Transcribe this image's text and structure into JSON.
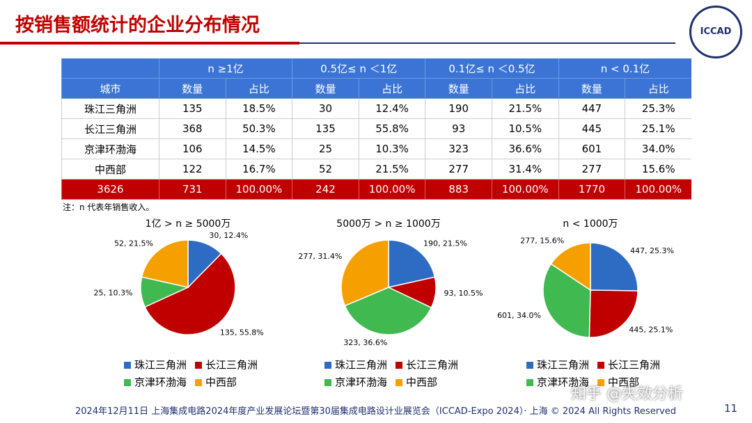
{
  "header": {
    "title": "按销售额统计的企业分布情况",
    "logo": "ICCAD"
  },
  "table": {
    "group_headers": [
      "n ≥1亿",
      "0.5亿≤ n ＜1亿",
      "0.1亿≤ n ＜0.5亿",
      "n < 0.1亿"
    ],
    "column_headers": [
      "城市",
      "数量",
      "占比",
      "数量",
      "占比",
      "数量",
      "占比",
      "数量",
      "占比"
    ],
    "rows": [
      [
        "珠江三角洲",
        "135",
        "18.5%",
        "30",
        "12.4%",
        "190",
        "21.5%",
        "447",
        "25.3%"
      ],
      [
        "长江三角洲",
        "368",
        "50.3%",
        "135",
        "55.8%",
        "93",
        "10.5%",
        "445",
        "25.1%"
      ],
      [
        "京津环渤海",
        "106",
        "14.5%",
        "25",
        "10.3%",
        "323",
        "36.6%",
        "601",
        "34.0%"
      ],
      [
        "中西部",
        "122",
        "16.7%",
        "52",
        "21.5%",
        "277",
        "31.4%",
        "277",
        "15.6%"
      ]
    ],
    "total": [
      "3626",
      "731",
      "100.00%",
      "242",
      "100.00%",
      "883",
      "100.00%",
      "1770",
      "100.00%"
    ]
  },
  "note": "注：n 代表年销售收入。",
  "chart_data": [
    {
      "type": "pie",
      "title": "1亿 > n ≥ 5000万",
      "categories": [
        "珠江三角洲",
        "长江三角洲",
        "京津环渤海",
        "中西部"
      ],
      "colors": [
        "#2e6cc4",
        "#c00000",
        "#3fb950",
        "#f5a000"
      ],
      "values": [
        30,
        135,
        25,
        52
      ],
      "value_labels": [
        "30, 12.4%",
        "135, 55.8%",
        "25, 10.3%",
        "52, 21.5%"
      ]
    },
    {
      "type": "pie",
      "title": "5000万 > n ≥ 1000万",
      "categories": [
        "珠江三角洲",
        "长江三角洲",
        "京津环渤海",
        "中西部"
      ],
      "colors": [
        "#2e6cc4",
        "#c00000",
        "#3fb950",
        "#f5a000"
      ],
      "values": [
        190,
        93,
        323,
        277
      ],
      "value_labels": [
        "190, 21.5%",
        "93, 10.5%",
        "323, 36.6%",
        "277, 31.4%"
      ]
    },
    {
      "type": "pie",
      "title": "n < 1000万",
      "categories": [
        "珠江三角洲",
        "长江三角洲",
        "京津环渤海",
        "中西部"
      ],
      "colors": [
        "#2e6cc4",
        "#c00000",
        "#3fb950",
        "#f5a000"
      ],
      "values": [
        447,
        445,
        601,
        277
      ],
      "value_labels": [
        "447, 25.3%",
        "445, 25.1%",
        "601, 34.0%",
        "277, 15.6%"
      ]
    }
  ],
  "footer": {
    "text": "2024年12月11日 上海集成电路2024年度产业发展论坛暨第30届集成电路设计业展览会（ICCAD-Expo 2024）· 上海 © 2024 All Rights Reserved",
    "page": "11"
  },
  "watermark": "知乎 @失效分析"
}
